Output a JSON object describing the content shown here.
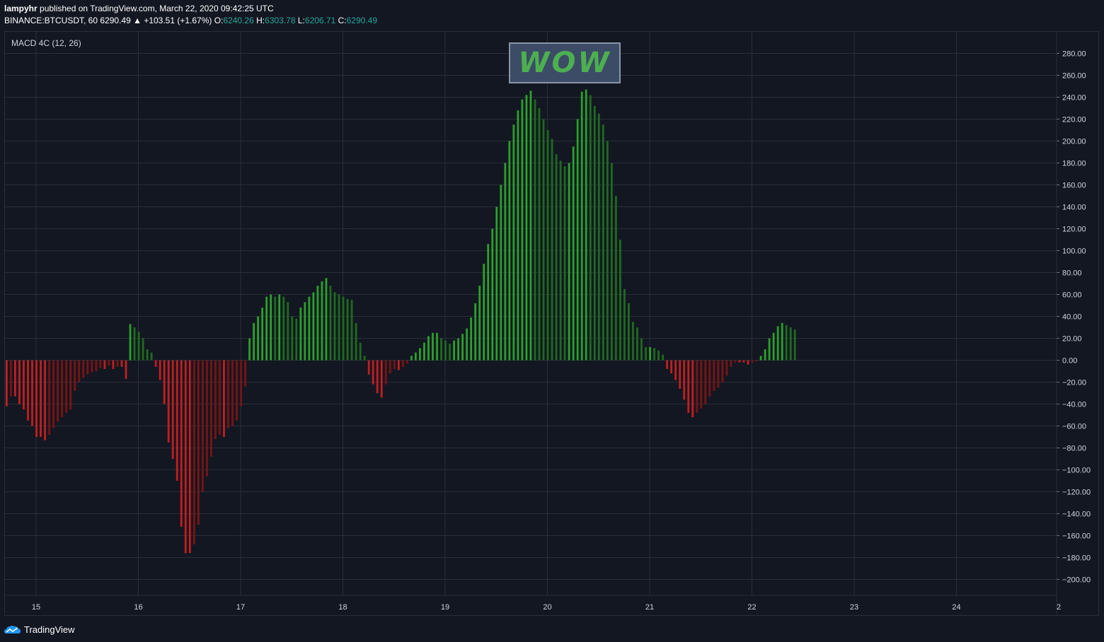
{
  "header": {
    "publisher": "lampyhr",
    "published_text": "published on TradingView.com, March 22, 2020 09:42:25 UTC",
    "symbol": "BINANCE:BTCUSDT, 60",
    "price": "6290.49",
    "change": "▲ +103.51 (+1.67%)",
    "o_label": "O:",
    "o_value": "6240.26",
    "h_label": "H:",
    "h_value": "6303.78",
    "l_label": "L:",
    "l_value": "6206.71",
    "c_label": "C:",
    "c_value": "6290.49"
  },
  "indicator_label": "MACD 4C (12, 26)",
  "annotation": "WOW",
  "footer": {
    "brand": "TradingView"
  },
  "colors": {
    "background": "#131722",
    "grid": "#2a2e39",
    "up_rising": "#2ca02c",
    "up_falling": "#1e6b1e",
    "down_falling": "#c21f1f",
    "down_rising": "#7a1414",
    "teal": "#26a69a"
  },
  "chart_data": {
    "type": "bar",
    "title": "MACD 4C (12, 26)",
    "x_ticks": [
      "15",
      "16",
      "17",
      "18",
      "19",
      "20",
      "21",
      "22",
      "23",
      "24",
      "2"
    ],
    "y_ticks": [
      "280.00",
      "260.00",
      "240.00",
      "220.00",
      "200.00",
      "180.00",
      "160.00",
      "140.00",
      "120.00",
      "100.00",
      "80.00",
      "60.00",
      "40.00",
      "20.00",
      "0.00",
      "−20.00",
      "−40.00",
      "−60.00",
      "−80.00",
      "−100.00",
      "−120.00",
      "−140.00",
      "−160.00",
      "−180.00",
      "−200.00"
    ],
    "ylim": [
      -210,
      290
    ],
    "grid": true,
    "first_bar_time": "March 14 2020 17:00 UTC",
    "bar_interval_hours": 1,
    "values": [
      -42,
      -33,
      -33,
      -40,
      -45,
      -55,
      -60,
      -70,
      -70,
      -73,
      -68,
      -62,
      -56,
      -52,
      -48,
      -45,
      -28,
      -20,
      -16,
      -13,
      -11,
      -10,
      -7,
      -8,
      -5,
      -8,
      -6,
      -6,
      -17,
      33,
      30,
      26,
      20,
      10,
      7,
      -6,
      -18,
      -40,
      -75,
      -90,
      -110,
      -152,
      -176,
      -176,
      -168,
      -150,
      -120,
      -106,
      -88,
      -72,
      -68,
      -70,
      -62,
      -60,
      -55,
      -42,
      -24,
      20,
      34,
      40,
      48,
      58,
      60,
      58,
      60,
      58,
      53,
      40,
      38,
      48,
      53,
      58,
      62,
      68,
      72,
      75,
      68,
      62,
      60,
      58,
      56,
      55,
      34,
      16,
      4,
      -13,
      -22,
      -30,
      -34,
      -22,
      -12,
      -8,
      -9,
      -6,
      -3,
      4,
      7,
      11,
      16,
      22,
      25,
      25,
      20,
      18,
      15,
      18,
      20,
      24,
      29,
      39,
      52,
      68,
      88,
      106,
      120,
      140,
      160,
      180,
      200,
      215,
      228,
      238,
      242,
      246,
      238,
      230,
      220,
      210,
      202,
      188,
      182,
      177,
      180,
      195,
      220,
      245,
      247,
      242,
      232,
      225,
      215,
      200,
      180,
      150,
      110,
      65,
      52,
      35,
      30,
      20,
      12,
      12,
      11,
      9,
      5,
      -8,
      -12,
      -18,
      -26,
      -36,
      -48,
      -52,
      -48,
      -44,
      -40,
      -33,
      -28,
      -25,
      -20,
      -14,
      -6,
      -2,
      -2,
      -2,
      -4,
      -2,
      -1,
      4,
      10,
      20,
      25,
      31,
      34,
      32,
      30,
      28
    ]
  }
}
